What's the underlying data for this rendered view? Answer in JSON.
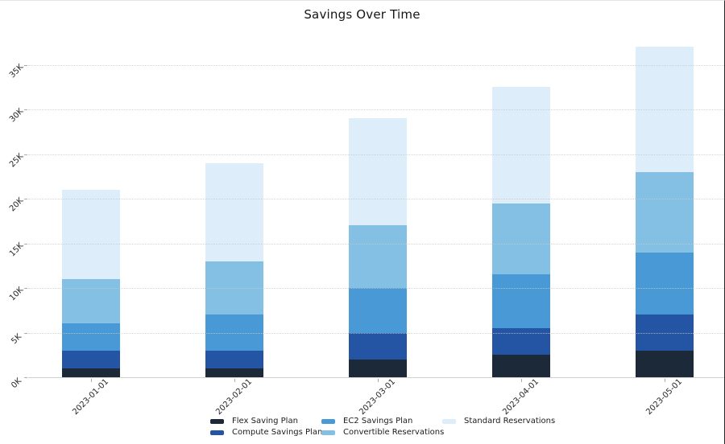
{
  "chart": {
    "title": "Savings Over Time"
  },
  "chart_data": {
    "type": "bar",
    "stacked": true,
    "title": "Savings Over Time",
    "categories": [
      "2023-01-01",
      "2023-02-01",
      "2023-03-01",
      "2023-04-01",
      "2023-05-01"
    ],
    "series": [
      {
        "name": "Flex Saving Plan",
        "color": "#1c2939",
        "values": [
          1000,
          1000,
          2000,
          2500,
          3000
        ]
      },
      {
        "name": "Compute Savings Plan",
        "color": "#2454a4",
        "values": [
          2000,
          2000,
          3000,
          3000,
          4000
        ]
      },
      {
        "name": "EC2 Savings Plan",
        "color": "#4899d6",
        "values": [
          3000,
          4000,
          5000,
          6000,
          7000
        ]
      },
      {
        "name": "Convertible Reservations",
        "color": "#83c0e3",
        "values": [
          5000,
          6000,
          7000,
          8000,
          9000
        ]
      },
      {
        "name": "Standard Reservations",
        "color": "#ddeefa",
        "values": [
          10000,
          11000,
          12000,
          13000,
          14000
        ]
      }
    ],
    "stack_totals": [
      21000,
      24000,
      29000,
      32500,
      37000
    ],
    "y_ticks": [
      "0K",
      "5K",
      "10K",
      "15K",
      "20K",
      "25K",
      "30K",
      "35K"
    ],
    "y_tick_values": [
      0,
      5000,
      10000,
      15000,
      20000,
      25000,
      30000,
      35000
    ],
    "ylim": [
      0,
      38500
    ],
    "xlabel": "",
    "ylabel": "",
    "grid": "horizontal dotted, drawn over bars",
    "tick_rotation_deg": 45,
    "legend_position": "bottom center, 3 columns x 2 rows"
  }
}
